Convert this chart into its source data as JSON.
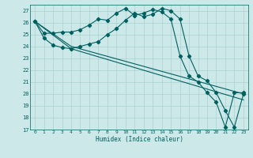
{
  "line1_x": [
    0,
    1,
    2,
    3,
    4,
    5,
    6,
    7,
    8,
    9,
    10,
    11,
    12,
    13,
    14,
    15,
    16,
    17,
    18,
    19,
    20,
    21,
    22,
    23
  ],
  "line1_y": [
    26.1,
    25.1,
    25.1,
    25.2,
    25.2,
    25.4,
    25.8,
    26.3,
    26.2,
    26.8,
    27.2,
    26.6,
    26.8,
    27.1,
    26.9,
    26.3,
    23.2,
    21.5,
    21.0,
    20.1,
    19.3,
    17.2,
    20.1,
    20.1
  ],
  "line2_x": [
    0,
    1,
    2,
    3,
    4,
    5,
    6,
    7,
    8,
    9,
    10,
    11,
    12,
    13,
    14,
    15,
    16,
    17,
    18,
    19,
    20,
    21,
    22,
    23
  ],
  "line2_y": [
    26.1,
    24.7,
    24.1,
    23.9,
    23.8,
    24.0,
    24.2,
    24.4,
    25.0,
    25.5,
    26.2,
    26.8,
    26.5,
    26.7,
    27.2,
    27.0,
    26.3,
    23.2,
    21.5,
    21.1,
    20.1,
    18.6,
    17.2,
    20.0
  ],
  "line3_x": [
    0,
    4,
    23
  ],
  "line3_y": [
    26.1,
    24.0,
    20.0
  ],
  "line4_x": [
    0,
    4,
    23
  ],
  "line4_y": [
    26.1,
    23.8,
    19.5
  ],
  "color": "#006060",
  "bg_color": "#cce8e8",
  "grid_color": "#aad0d0",
  "xlabel": "Humidex (Indice chaleur)",
  "xlim": [
    -0.5,
    23.5
  ],
  "ylim": [
    17,
    27.5
  ],
  "yticks": [
    17,
    18,
    19,
    20,
    21,
    22,
    23,
    24,
    25,
    26,
    27
  ],
  "xticks": [
    0,
    1,
    2,
    3,
    4,
    5,
    6,
    7,
    8,
    9,
    10,
    11,
    12,
    13,
    14,
    15,
    16,
    17,
    18,
    19,
    20,
    21,
    22,
    23
  ]
}
